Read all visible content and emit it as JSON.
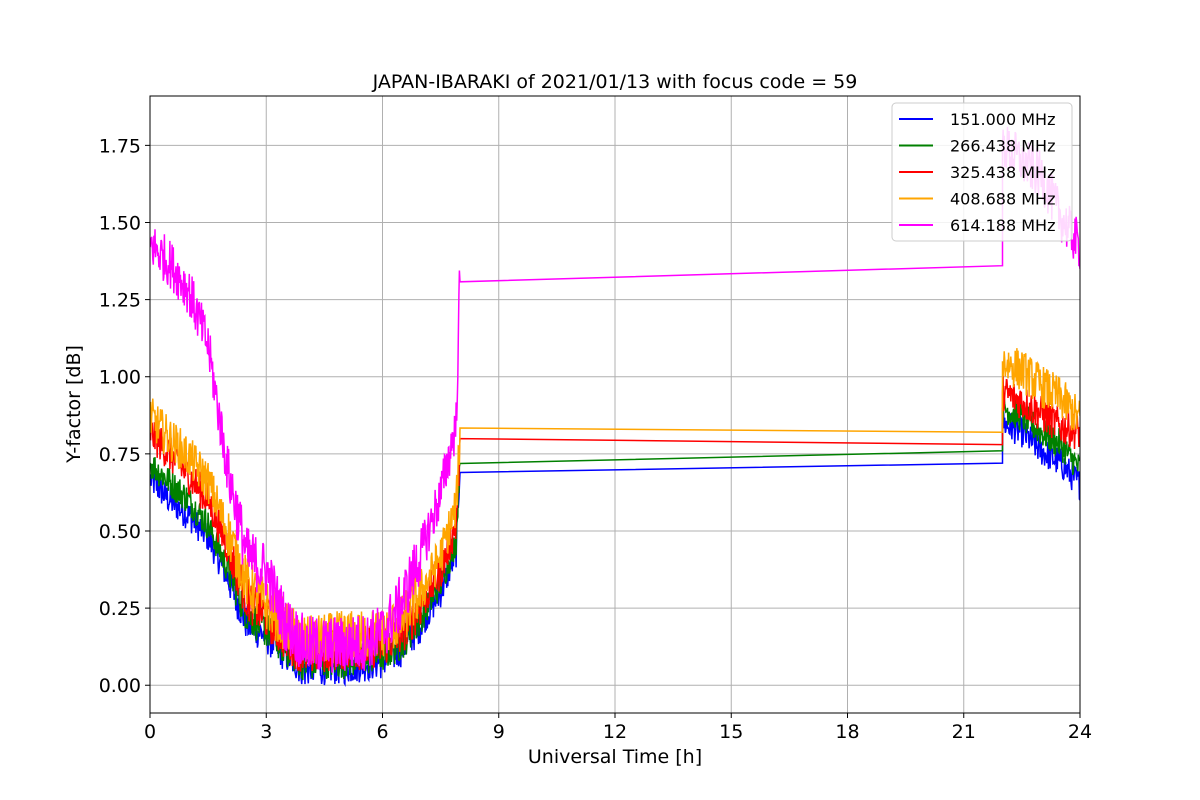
{
  "chart_data": {
    "type": "line",
    "title": "JAPAN-IBARAKI of 2021/01/13 with focus code = 59",
    "xlabel": "Universal Time [h]",
    "ylabel": "Y-factor [dB]",
    "xlim": [
      0,
      24
    ],
    "ylim": [
      -0.09,
      1.91
    ],
    "xticks": [
      0,
      3,
      6,
      9,
      12,
      15,
      18,
      21,
      24
    ],
    "xtick_labels": [
      "0",
      "3",
      "6",
      "9",
      "12",
      "15",
      "18",
      "21",
      "24"
    ],
    "yticks": [
      0.0,
      0.25,
      0.5,
      0.75,
      1.0,
      1.25,
      1.5,
      1.75
    ],
    "ytick_labels": [
      "0.00",
      "0.25",
      "0.50",
      "0.75",
      "1.00",
      "1.25",
      "1.50",
      "1.75"
    ],
    "grid": true,
    "legend_position": "top-right",
    "series": [
      {
        "name": "151.000 MHz",
        "color": "#0000ff",
        "noise": 0.05,
        "points": [
          [
            0,
            0.67
          ],
          [
            0.5,
            0.6
          ],
          [
            1,
            0.55
          ],
          [
            1.5,
            0.48
          ],
          [
            2,
            0.35
          ],
          [
            2.5,
            0.2
          ],
          [
            3,
            0.16
          ],
          [
            3.5,
            0.1
          ],
          [
            4,
            0.05
          ],
          [
            4.5,
            0.06
          ],
          [
            5,
            0.06
          ],
          [
            5.5,
            0.07
          ],
          [
            6,
            0.08
          ],
          [
            6.5,
            0.12
          ],
          [
            7,
            0.2
          ],
          [
            7.5,
            0.3
          ],
          [
            7.9,
            0.43
          ],
          [
            8.0,
            0.72
          ],
          [
            22.0,
            0.72
          ],
          [
            22.0,
            0.85
          ],
          [
            22.5,
            0.82
          ],
          [
            23,
            0.76
          ],
          [
            23.5,
            0.72
          ],
          [
            24,
            0.65
          ]
        ]
      },
      {
        "name": "266.438 MHz",
        "color": "#008000",
        "noise": 0.05,
        "points": [
          [
            0,
            0.72
          ],
          [
            0.5,
            0.66
          ],
          [
            1,
            0.6
          ],
          [
            1.5,
            0.52
          ],
          [
            2,
            0.38
          ],
          [
            2.5,
            0.23
          ],
          [
            3,
            0.18
          ],
          [
            3.5,
            0.12
          ],
          [
            4,
            0.07
          ],
          [
            4.5,
            0.08
          ],
          [
            5,
            0.08
          ],
          [
            5.5,
            0.09
          ],
          [
            6,
            0.1
          ],
          [
            6.5,
            0.14
          ],
          [
            7,
            0.22
          ],
          [
            7.5,
            0.33
          ],
          [
            7.9,
            0.47
          ],
          [
            8.0,
            0.75
          ],
          [
            22.0,
            0.76
          ],
          [
            22.0,
            0.9
          ],
          [
            22.5,
            0.87
          ],
          [
            23,
            0.82
          ],
          [
            23.5,
            0.78
          ],
          [
            24,
            0.7
          ]
        ]
      },
      {
        "name": "325.438 MHz",
        "color": "#ff0000",
        "noise": 0.06,
        "points": [
          [
            0,
            0.82
          ],
          [
            0.5,
            0.75
          ],
          [
            1,
            0.68
          ],
          [
            1.5,
            0.6
          ],
          [
            2,
            0.45
          ],
          [
            2.5,
            0.28
          ],
          [
            3,
            0.22
          ],
          [
            3.5,
            0.15
          ],
          [
            4,
            0.1
          ],
          [
            4.5,
            0.11
          ],
          [
            5,
            0.12
          ],
          [
            5.5,
            0.12
          ],
          [
            6,
            0.13
          ],
          [
            6.5,
            0.17
          ],
          [
            7,
            0.26
          ],
          [
            7.5,
            0.37
          ],
          [
            7.9,
            0.52
          ],
          [
            8.0,
            0.76
          ],
          [
            22.0,
            0.78
          ],
          [
            22.0,
            0.95
          ],
          [
            22.5,
            0.92
          ],
          [
            23,
            0.88
          ],
          [
            23.5,
            0.84
          ],
          [
            24,
            0.82
          ]
        ]
      },
      {
        "name": "408.688 MHz",
        "color": "#ffa500",
        "noise": 0.07,
        "points": [
          [
            0,
            0.87
          ],
          [
            0.5,
            0.8
          ],
          [
            1,
            0.74
          ],
          [
            1.5,
            0.66
          ],
          [
            2,
            0.5
          ],
          [
            2.5,
            0.33
          ],
          [
            3,
            0.26
          ],
          [
            3.5,
            0.19
          ],
          [
            4,
            0.14
          ],
          [
            4.5,
            0.15
          ],
          [
            5,
            0.16
          ],
          [
            5.5,
            0.16
          ],
          [
            6,
            0.17
          ],
          [
            6.5,
            0.21
          ],
          [
            7,
            0.3
          ],
          [
            7.5,
            0.42
          ],
          [
            7.9,
            0.58
          ],
          [
            8.0,
            0.81
          ],
          [
            22.0,
            0.82
          ],
          [
            22.0,
            1.05
          ],
          [
            22.5,
            1.02
          ],
          [
            23,
            0.97
          ],
          [
            23.5,
            0.93
          ],
          [
            24,
            0.86
          ]
        ]
      },
      {
        "name": "614.188 MHz",
        "color": "#ff00ff",
        "noise": 0.08,
        "points": [
          [
            0,
            1.43
          ],
          [
            0.5,
            1.37
          ],
          [
            1,
            1.28
          ],
          [
            1.5,
            1.1
          ],
          [
            2,
            0.7
          ],
          [
            2.5,
            0.42
          ],
          [
            3,
            0.37
          ],
          [
            3.5,
            0.2
          ],
          [
            4,
            0.13
          ],
          [
            4.5,
            0.13
          ],
          [
            5,
            0.13
          ],
          [
            5.5,
            0.14
          ],
          [
            6,
            0.17
          ],
          [
            6.5,
            0.27
          ],
          [
            7,
            0.43
          ],
          [
            7.5,
            0.62
          ],
          [
            7.9,
            0.85
          ],
          [
            8.0,
            1.34
          ],
          [
            22.0,
            1.36
          ],
          [
            22.0,
            1.75
          ],
          [
            22.5,
            1.7
          ],
          [
            23,
            1.65
          ],
          [
            23.5,
            1.52
          ],
          [
            24,
            1.42
          ]
        ]
      }
    ]
  }
}
